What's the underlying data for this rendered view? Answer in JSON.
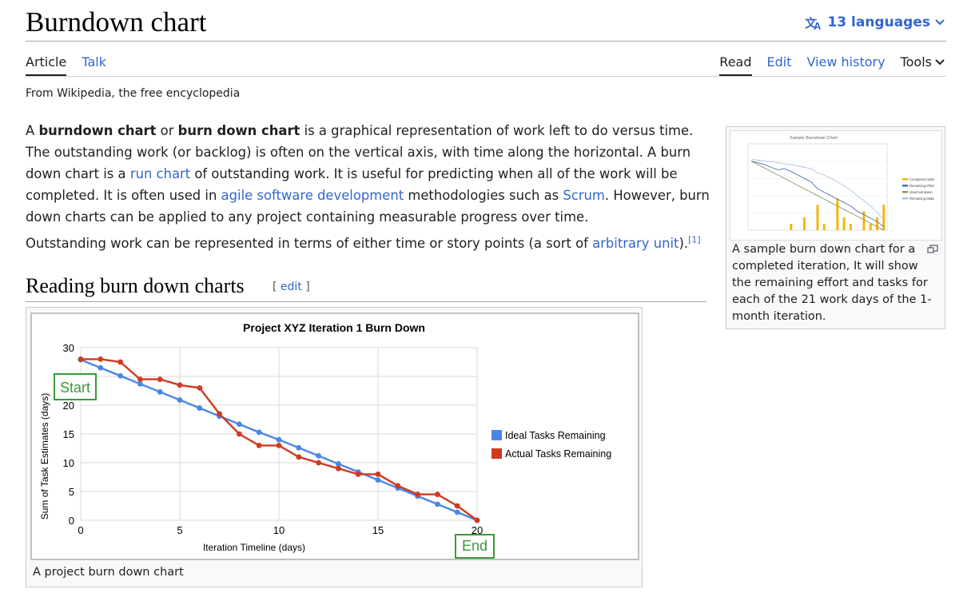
{
  "page": {
    "title": "Burndown chart",
    "languages_label": "13 languages",
    "tagline": "From Wikipedia, the free encyclopedia"
  },
  "tabs_left": [
    {
      "label": "Article",
      "selected": true
    },
    {
      "label": "Talk",
      "selected": false
    }
  ],
  "tabs_right": [
    {
      "label": "Read",
      "selected": true
    },
    {
      "label": "Edit",
      "selected": false
    },
    {
      "label": "View history",
      "selected": false
    },
    {
      "label": "Tools",
      "selected": false
    }
  ],
  "intro": {
    "p1_a": "A ",
    "p1_b": "burndown chart",
    "p1_c": " or ",
    "p1_d": "burn down chart",
    "p1_e": " is a graphical representation of work left to do versus time. The outstanding work (or backlog) is often on the vertical axis, with time along the horizontal. A burn down chart is a ",
    "p1_link1": "run chart",
    "p1_f": " of outstanding work. It is useful for predicting when all of the work will be completed. It is often used in ",
    "p1_link2": "agile software development",
    "p1_g": " methodologies such as ",
    "p1_link3": "Scrum",
    "p1_h": ". However, burn down charts can be applied to any project containing measurable progress over time.",
    "p2_a": "Outstanding work can be represented in terms of either time or story points (a sort of ",
    "p2_link": "arbitrary unit",
    "p2_b": ").",
    "p2_ref": "[1]"
  },
  "section": {
    "heading": "Reading burn down charts",
    "edit_open": "[ ",
    "edit_label": "edit",
    "edit_close": " ]"
  },
  "figure_main": {
    "caption": "A project burn down chart",
    "callout_start": "Start",
    "callout_end": "End"
  },
  "figure_thumb": {
    "caption": "A sample burn down chart for a completed iteration, It will show the remaining effort and tasks for each of the 21 work days of the 1-month iteration."
  },
  "colors": {
    "link": "#3366cc",
    "ideal": "#4a86e8",
    "actual": "#d03a1f",
    "callout": "#3a9a3a"
  },
  "chart_data": [
    {
      "type": "line",
      "title": "Project XYZ Iteration 1 Burn Down",
      "xlabel": "Iteration Timeline (days)",
      "ylabel": "Sum of Task Estimates (days)",
      "xlim": [
        0,
        20
      ],
      "ylim": [
        0,
        30
      ],
      "xticks": [
        0,
        5,
        10,
        15,
        20
      ],
      "yticks": [
        0,
        5,
        10,
        15,
        20,
        25,
        30
      ],
      "grid": true,
      "legend_position": "right",
      "x": [
        0,
        1,
        2,
        3,
        4,
        5,
        6,
        7,
        8,
        9,
        10,
        11,
        12,
        13,
        14,
        15,
        16,
        17,
        18,
        19,
        20
      ],
      "series": [
        {
          "name": "Ideal Tasks Remaining",
          "color": "#4a86e8",
          "values": [
            27.9,
            26.5,
            25.1,
            23.7,
            22.3,
            20.9,
            19.5,
            18.1,
            16.7,
            15.3,
            14.0,
            12.6,
            11.2,
            9.8,
            8.4,
            7.0,
            5.6,
            4.2,
            2.8,
            1.4,
            0
          ]
        },
        {
          "name": "Actual Tasks Remaining",
          "color": "#d03a1f",
          "values": [
            28,
            28,
            27.5,
            24.5,
            24.5,
            23.5,
            23,
            18.5,
            15,
            13,
            13,
            11,
            10,
            9,
            8,
            8,
            6,
            4.5,
            4.5,
            2.5,
            0
          ]
        }
      ]
    },
    {
      "type": "bar",
      "title": "Sample Burndown Chart",
      "legend": [
        "Completed tasks",
        "Remaining effort",
        "Ideal burndown",
        "Remaining tasks"
      ],
      "x": [
        1,
        2,
        3,
        4,
        5,
        6,
        7,
        8,
        9,
        10,
        11,
        12,
        13,
        14,
        15,
        16,
        17,
        18,
        19,
        20,
        21
      ],
      "series": [
        {
          "name": "Completed tasks",
          "color": "#f4b400",
          "values": [
            0,
            0,
            0,
            0,
            0,
            0,
            1,
            0,
            2,
            0,
            4,
            1,
            0,
            5,
            2,
            1,
            0,
            3,
            1,
            2,
            4
          ]
        },
        {
          "name": "Remaining effort",
          "color": "#4a6fb0",
          "values": [
            200,
            195,
            190,
            182,
            175,
            178,
            170,
            160,
            150,
            140,
            120,
            110,
            100,
            90,
            80,
            70,
            55,
            45,
            35,
            25,
            10
          ]
        },
        {
          "name": "Ideal burndown",
          "color": "#8a9a5b",
          "values": [
            200,
            190,
            180,
            170,
            160,
            150,
            140,
            130,
            120,
            110,
            100,
            90,
            80,
            70,
            60,
            50,
            40,
            30,
            20,
            10,
            0
          ]
        },
        {
          "name": "Remaining tasks",
          "color": "#a9c4e8",
          "values": [
            205,
            203,
            200,
            198,
            196,
            192,
            190,
            186,
            182,
            178,
            166,
            160,
            150,
            140,
            128,
            116,
            100,
            86,
            70,
            52,
            30
          ]
        }
      ]
    }
  ]
}
